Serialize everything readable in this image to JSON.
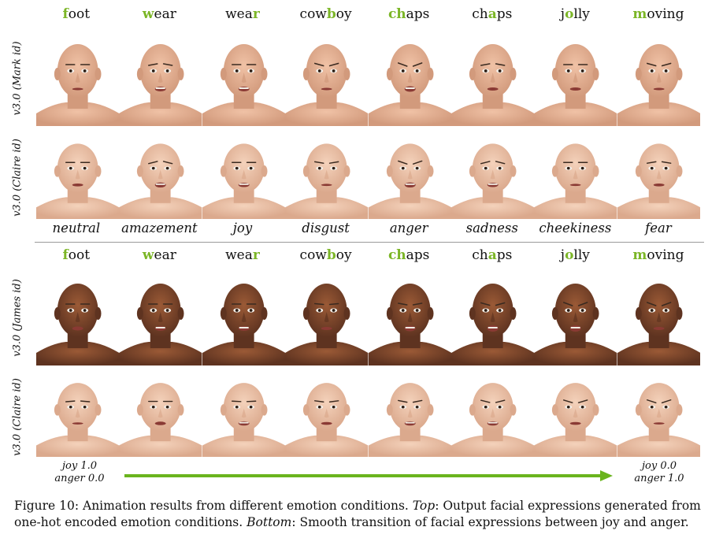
{
  "top_words": [
    {
      "pre": "",
      "hl": "f",
      "post": "oot"
    },
    {
      "pre": "",
      "hl": "w",
      "post": "ear"
    },
    {
      "pre": "wea",
      "hl": "r",
      "post": ""
    },
    {
      "pre": "cow",
      "hl": "b",
      "post": "oy"
    },
    {
      "pre": "",
      "hl": "ch",
      "post": "aps"
    },
    {
      "pre": "ch",
      "hl": "a",
      "post": "ps"
    },
    {
      "pre": "j",
      "hl": "o",
      "post": "lly"
    },
    {
      "pre": "",
      "hl": "m",
      "post": "oving"
    }
  ],
  "row_labels": {
    "mark": "v3.0 (Mark id)",
    "claire_top": "v3.0 (Claire id)",
    "james": "v3.0 (James id)",
    "claire_bottom": "v3.0 (Claire id)"
  },
  "emotions": [
    "neutral",
    "amazement",
    "joy",
    "disgust",
    "anger",
    "sadness",
    "cheekiness",
    "fear"
  ],
  "transition": {
    "start_line1": "joy 1.0",
    "start_line2": "anger 0.0",
    "end_line1": "joy 0.0",
    "end_line2": "anger 1.0"
  },
  "colors": {
    "highlight": "#7cb627",
    "arrow": "#6ab41e",
    "divider": "#9a9a9a"
  },
  "caption": {
    "prefix": "Figure 10: Animation results from different emotion conditions. ",
    "top_label": "Top",
    "top_text": ": Output facial expressions generated from one-hot encoded emotion conditions. ",
    "bottom_label": "Bottom",
    "bottom_text": ": Smooth transition of facial expressions between joy and anger."
  }
}
